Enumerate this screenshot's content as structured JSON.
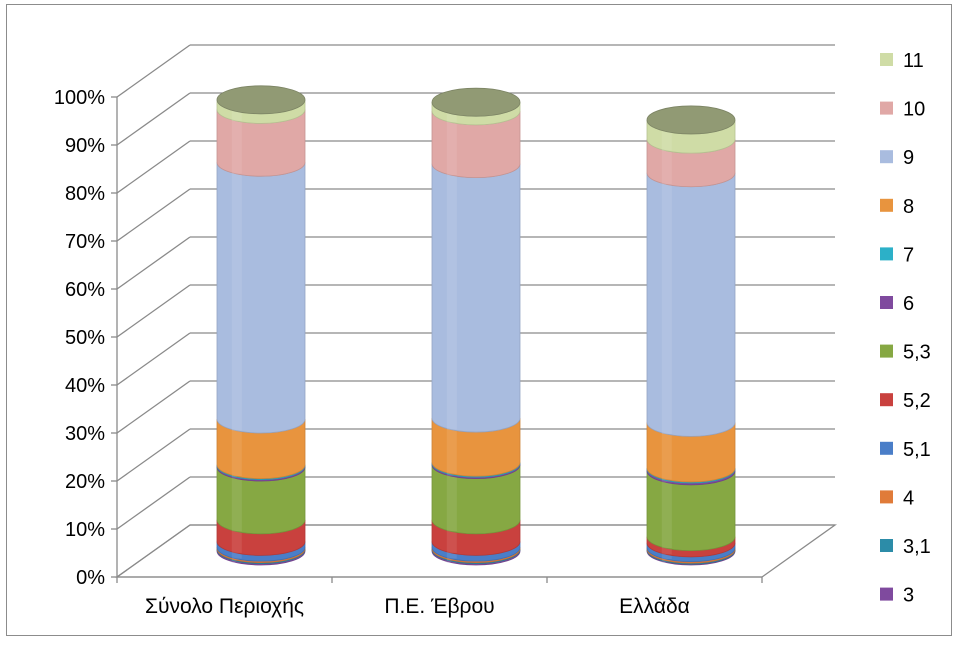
{
  "chart_data": {
    "type": "bar",
    "stacked": true,
    "percent_stacked": true,
    "style": "3d-cylinder",
    "title": "",
    "xlabel": "",
    "ylabel": "",
    "ylim": [
      0,
      100
    ],
    "yticks": [
      "0%",
      "10%",
      "20%",
      "30%",
      "40%",
      "50%",
      "60%",
      "70%",
      "80%",
      "90%",
      "100%"
    ],
    "categories": [
      "Σύνολο Περιοχής",
      "Π.Ε. Έβρου",
      "Ελλάδα"
    ],
    "legend_position": "right",
    "grid": true,
    "series": [
      {
        "name": "3",
        "color": "#7F4A9E",
        "values": [
          0.3,
          0.3,
          0.2
        ]
      },
      {
        "name": "3,1",
        "color": "#2C8CA8",
        "values": [
          0.2,
          0.2,
          0.2
        ]
      },
      {
        "name": "4",
        "color": "#E07B39",
        "values": [
          0.3,
          0.3,
          0.3
        ]
      },
      {
        "name": "5,1",
        "color": "#4A7EC8",
        "values": [
          1.2,
          1.2,
          1.0
        ]
      },
      {
        "name": "5,2",
        "color": "#C9413E",
        "values": [
          4.5,
          4.5,
          1.3
        ]
      },
      {
        "name": "5,3",
        "color": "#86A843",
        "values": [
          11.0,
          11.5,
          13.7
        ]
      },
      {
        "name": "6",
        "color": "#7F4A9E",
        "values": [
          0.3,
          0.3,
          0.4
        ]
      },
      {
        "name": "7",
        "color": "#2CB0C8",
        "values": [
          0.2,
          0.2,
          0.2
        ]
      },
      {
        "name": "8",
        "color": "#E8943E",
        "values": [
          9.5,
          9.2,
          9.5
        ]
      },
      {
        "name": "9",
        "color": "#A9BCDF",
        "values": [
          53.5,
          53.0,
          52.0
        ]
      },
      {
        "name": "10",
        "color": "#E0A8A6",
        "values": [
          11.0,
          11.0,
          7.0
        ]
      },
      {
        "name": "11",
        "color": "#CFDCA6",
        "values": [
          2.0,
          1.8,
          4.0
        ]
      }
    ]
  }
}
